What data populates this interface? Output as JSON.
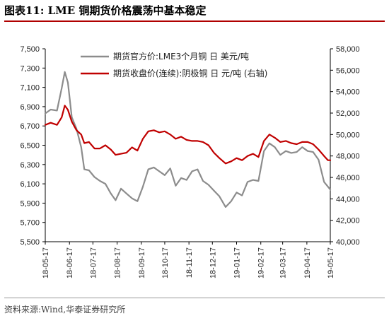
{
  "header": {
    "title": "图表11:  LME 铜期货价格震荡中基本稳定"
  },
  "footer": {
    "source": "资料来源:Wind,华泰证券研究所"
  },
  "chart_data": {
    "type": "line",
    "title": "",
    "xlabel": "",
    "ylabel": "",
    "y2label": "",
    "x_ticks": [
      "18-05-17",
      "18-06-17",
      "18-07-17",
      "18-08-17",
      "18-09-17",
      "18-10-17",
      "18-11-17",
      "18-12-17",
      "19-01-17",
      "19-02-17",
      "19-03-17",
      "19-04-17",
      "19-05-17"
    ],
    "ylim": [
      5500,
      7500
    ],
    "y_ticks": [
      "5,500",
      "5,700",
      "5,900",
      "6,100",
      "6,300",
      "6,500",
      "6,700",
      "6,900",
      "7,100",
      "7,300",
      "7,500"
    ],
    "y2lim": [
      40000,
      58000
    ],
    "y2_ticks": [
      "40,000",
      "42,000",
      "44,000",
      "46,000",
      "48,000",
      "50,000",
      "52,000",
      "54,000",
      "56,000",
      "58,000"
    ],
    "grid": false,
    "legend": "top-right",
    "series": [
      {
        "name": "期货官方价:LME3个月铜 日 美元/吨",
        "axis": "left",
        "color": "#8c8c8c",
        "x": [
          "18-05-17",
          "18-05-24",
          "18-06-01",
          "18-06-07",
          "18-06-11",
          "18-06-15",
          "18-06-20",
          "18-06-26",
          "18-07-02",
          "18-07-06",
          "18-07-12",
          "18-07-19",
          "18-07-26",
          "18-08-02",
          "18-08-09",
          "18-08-15",
          "18-08-22",
          "18-08-29",
          "18-09-05",
          "18-09-12",
          "18-09-19",
          "18-09-26",
          "18-10-03",
          "18-10-10",
          "18-10-17",
          "18-10-24",
          "18-10-31",
          "18-11-07",
          "18-11-14",
          "18-11-21",
          "18-11-28",
          "18-12-05",
          "18-12-12",
          "18-12-19",
          "18-12-26",
          "19-01-03",
          "19-01-10",
          "19-01-17",
          "19-01-24",
          "19-01-31",
          "19-02-07",
          "19-02-14",
          "19-02-21",
          "19-02-28",
          "19-03-07",
          "19-03-14",
          "19-03-21",
          "19-03-28",
          "19-04-04",
          "19-04-11",
          "19-04-18",
          "19-04-25",
          "19-05-02",
          "19-05-09",
          "19-05-14",
          "19-05-17"
        ],
        "values": [
          6830,
          6870,
          6860,
          7090,
          7260,
          7150,
          6790,
          6670,
          6480,
          6250,
          6240,
          6170,
          6130,
          6100,
          6000,
          5930,
          6050,
          6000,
          5950,
          5920,
          6070,
          6250,
          6270,
          6230,
          6190,
          6260,
          6080,
          6160,
          6140,
          6230,
          6250,
          6130,
          6090,
          6030,
          5970,
          5860,
          5920,
          6010,
          5980,
          6120,
          6140,
          6130,
          6440,
          6520,
          6480,
          6400,
          6440,
          6420,
          6430,
          6480,
          6440,
          6430,
          6350,
          6120,
          6070,
          6040
        ]
      },
      {
        "name": "期货收盘价(连续):阴极铜 日 元/吨 (右轴)",
        "axis": "right",
        "color": "#c00000",
        "x": [
          "18-05-17",
          "18-05-24",
          "18-06-01",
          "18-06-07",
          "18-06-11",
          "18-06-15",
          "18-06-20",
          "18-06-26",
          "18-07-02",
          "18-07-06",
          "18-07-12",
          "18-07-19",
          "18-07-26",
          "18-08-02",
          "18-08-09",
          "18-08-15",
          "18-08-22",
          "18-08-29",
          "18-09-05",
          "18-09-12",
          "18-09-19",
          "18-09-26",
          "18-10-03",
          "18-10-10",
          "18-10-17",
          "18-10-24",
          "18-10-31",
          "18-11-07",
          "18-11-14",
          "18-11-21",
          "18-11-28",
          "18-12-05",
          "18-12-12",
          "18-12-19",
          "18-12-26",
          "19-01-03",
          "19-01-10",
          "19-01-17",
          "19-01-24",
          "19-01-31",
          "19-02-07",
          "19-02-14",
          "19-02-21",
          "19-02-28",
          "19-03-07",
          "19-03-14",
          "19-03-21",
          "19-03-28",
          "19-04-04",
          "19-04-11",
          "19-04-18",
          "19-04-25",
          "19-05-02",
          "19-05-09",
          "19-05-14",
          "19-05-17"
        ],
        "values": [
          50900,
          51100,
          50900,
          51600,
          52700,
          52300,
          51200,
          50400,
          50000,
          49200,
          49300,
          48700,
          48700,
          49000,
          48600,
          48100,
          48200,
          48300,
          48800,
          48500,
          49600,
          50300,
          50400,
          50200,
          50300,
          50000,
          49600,
          49800,
          49500,
          49400,
          49400,
          49300,
          49000,
          48300,
          47800,
          47300,
          47500,
          47800,
          47600,
          48000,
          48200,
          47900,
          49400,
          50000,
          49700,
          49300,
          49400,
          49200,
          49100,
          49300,
          49300,
          49100,
          48600,
          48000,
          47600,
          47600
        ]
      }
    ]
  }
}
